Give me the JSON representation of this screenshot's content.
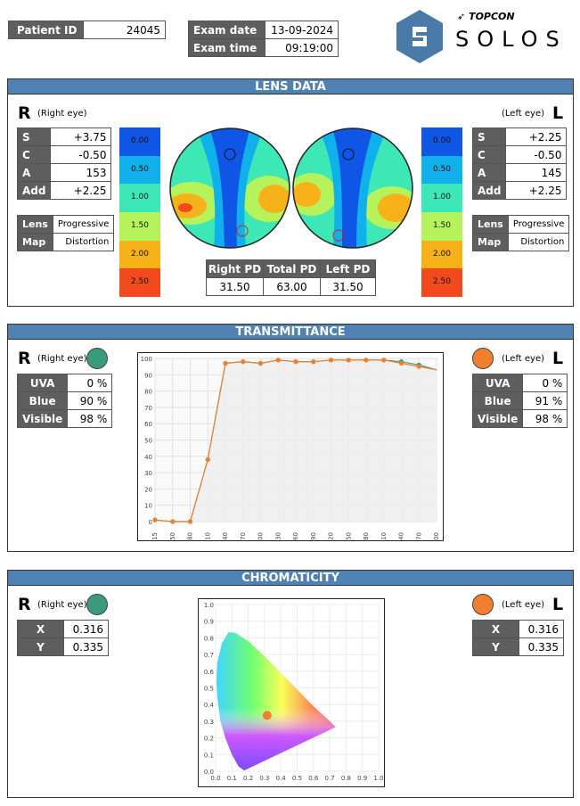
{
  "header": {
    "patient_id_label": "Patient ID",
    "patient_id": "24045",
    "exam_date_label": "Exam date",
    "exam_date": "13-09-2024",
    "exam_time_label": "Exam time",
    "exam_time": "09:19:00",
    "brand_top": "TOPCON",
    "brand_name": "SOLOS"
  },
  "lens_data": {
    "title": "LENS DATA",
    "right": {
      "eye_letter": "R",
      "eye_label": "(Right eye)",
      "rows": [
        {
          "k": "S",
          "v": "+3.75"
        },
        {
          "k": "C",
          "v": "-0.50"
        },
        {
          "k": "A",
          "v": "153"
        },
        {
          "k": "Add",
          "v": "+2.25"
        }
      ],
      "lens_label": "Lens",
      "lens_value": "Progressive",
      "map_label": "Map",
      "map_value": "Distortion"
    },
    "left": {
      "eye_letter": "L",
      "eye_label": "(Left eye)",
      "rows": [
        {
          "k": "S",
          "v": "+2.25"
        },
        {
          "k": "C",
          "v": "-0.50"
        },
        {
          "k": "A",
          "v": "145"
        },
        {
          "k": "Add",
          "v": "+2.25"
        }
      ],
      "lens_label": "Lens",
      "lens_value": "Progressive",
      "map_label": "Map",
      "map_value": "Distortion"
    },
    "scale": [
      {
        "label": "0.00",
        "color": "#0f55e6"
      },
      {
        "label": "0.50",
        "color": "#10b0ea"
      },
      {
        "label": "1.00",
        "color": "#3de8b6"
      },
      {
        "label": "1.50",
        "color": "#b6f25a"
      },
      {
        "label": "2.00",
        "color": "#f7b21a"
      },
      {
        "label": "2.50",
        "color": "#f24a1c"
      }
    ],
    "pd": {
      "right_label": "Right PD",
      "total_label": "Total PD",
      "left_label": "Left PD",
      "right": "31.50",
      "total": "63.00",
      "left": "31.50"
    }
  },
  "transmittance": {
    "title": "TRANSMITTANCE",
    "right": {
      "eye_letter": "R",
      "eye_label": "(Right eye)",
      "dot_color": "#3a9b7c",
      "rows": [
        {
          "k": "UVA",
          "v": "0 %"
        },
        {
          "k": "Blue",
          "v": "90 %"
        },
        {
          "k": "Visible",
          "v": "98 %"
        }
      ]
    },
    "left": {
      "eye_letter": "L",
      "eye_label": "(Left eye)",
      "dot_color": "#f08030",
      "rows": [
        {
          "k": "UVA",
          "v": "0 %"
        },
        {
          "k": "Blue",
          "v": "91 %"
        },
        {
          "k": "Visible",
          "v": "98 %"
        }
      ]
    }
  },
  "chromaticity": {
    "title": "CHROMATICITY",
    "right": {
      "eye_letter": "R",
      "eye_label": "(Right eye)",
      "dot_color": "#3a9b7c",
      "rows": [
        {
          "k": "X",
          "v": "0.316"
        },
        {
          "k": "Y",
          "v": "0.335"
        }
      ]
    },
    "left": {
      "eye_letter": "L",
      "eye_label": "(Left eye)",
      "dot_color": "#f08030",
      "rows": [
        {
          "k": "X",
          "v": "0.316"
        },
        {
          "k": "Y",
          "v": "0.335"
        }
      ]
    }
  },
  "chart_data": [
    {
      "type": "line",
      "categories": [
        "315",
        "350",
        "380",
        "410",
        "440",
        "470",
        "500",
        "530",
        "560",
        "590",
        "620",
        "650",
        "680",
        "710",
        "740",
        "770",
        "800"
      ],
      "ylim": [
        0,
        100
      ],
      "y_ticks": [
        "0",
        "10",
        "20",
        "30",
        "40",
        "50",
        "60",
        "70",
        "80",
        "90",
        "100"
      ],
      "series": [
        {
          "color": "#3a9b7c",
          "values": [
            1,
            0,
            0,
            38,
            97,
            98,
            97,
            99,
            98,
            98,
            99,
            99,
            99,
            99,
            98,
            96,
            93
          ]
        },
        {
          "color": "#f08030",
          "values": [
            1,
            0,
            0,
            38,
            97,
            98,
            97,
            99,
            98,
            98,
            99,
            99,
            99,
            99,
            97,
            95,
            93
          ]
        }
      ],
      "grid": true
    },
    {
      "type": "scatter",
      "x_ticks": [
        "0.0",
        "0.1",
        "0.2",
        "0.3",
        "0.4",
        "0.5",
        "0.6",
        "0.7",
        "0.8",
        "0.9",
        "1.0"
      ],
      "y_ticks": [
        "0.0",
        "0.1",
        "0.2",
        "0.3",
        "0.4",
        "0.5",
        "0.6",
        "0.7",
        "0.8",
        "0.9",
        "1.0"
      ],
      "xlim": [
        0,
        1
      ],
      "ylim": [
        0,
        1
      ],
      "points": [
        {
          "x": 0.316,
          "y": 0.335,
          "color": "#f08030"
        }
      ]
    }
  ]
}
